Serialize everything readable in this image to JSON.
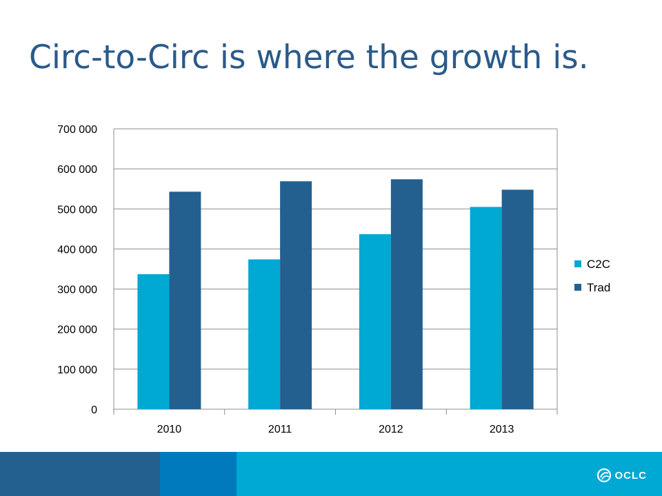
{
  "slide": {
    "title": "Circ-to-Circ is where the growth is."
  },
  "chart_data": {
    "type": "bar",
    "categories": [
      "2010",
      "2011",
      "2012",
      "2013"
    ],
    "series": [
      {
        "name": "C2C",
        "values": [
          337000,
          374000,
          437000,
          505000
        ],
        "color": "#00a8d4"
      },
      {
        "name": "Trad",
        "values": [
          543000,
          569000,
          574000,
          548000
        ],
        "color": "#23608f"
      }
    ],
    "title": "",
    "xlabel": "",
    "ylabel": "",
    "ylim": [
      0,
      700000
    ],
    "yticks": [
      0,
      100000,
      200000,
      300000,
      400000,
      500000,
      600000,
      700000
    ],
    "ytick_labels": [
      "0",
      "100 000",
      "200 000",
      "300 000",
      "400 000",
      "500 000",
      "600 000",
      "700 000"
    ],
    "grid": true,
    "legend_position": "right"
  },
  "footer": {
    "colors": [
      "#23608f",
      "#0079bd",
      "#00a8d4"
    ],
    "logo_text": "OCLC"
  }
}
